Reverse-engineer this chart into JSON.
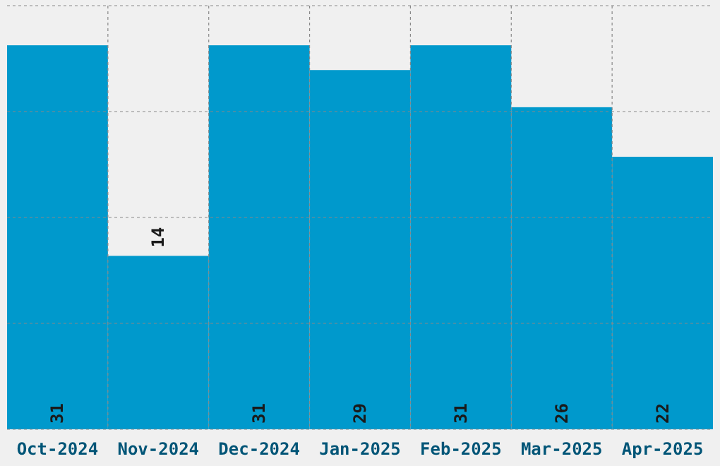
{
  "chart_data": {
    "type": "bar",
    "categories": [
      "Oct-2024",
      "Nov-2024",
      "Dec-2024",
      "Jan-2025",
      "Feb-2025",
      "Mar-2025",
      "Apr-2025"
    ],
    "values": [
      31,
      14,
      31,
      29,
      31,
      26,
      22
    ],
    "color": "#0099cc",
    "ylim": [
      0,
      34.2
    ],
    "yticks": [
      {
        "value": 0,
        "label": null
      },
      {
        "value": 8.55,
        "label": null
      },
      {
        "value": 17.1,
        "label": null
      },
      {
        "value": 25.65,
        "label": null
      },
      {
        "value": 34.2,
        "label": null
      }
    ],
    "tick_labels": "x",
    "grid": true,
    "data_labels": true
  }
}
